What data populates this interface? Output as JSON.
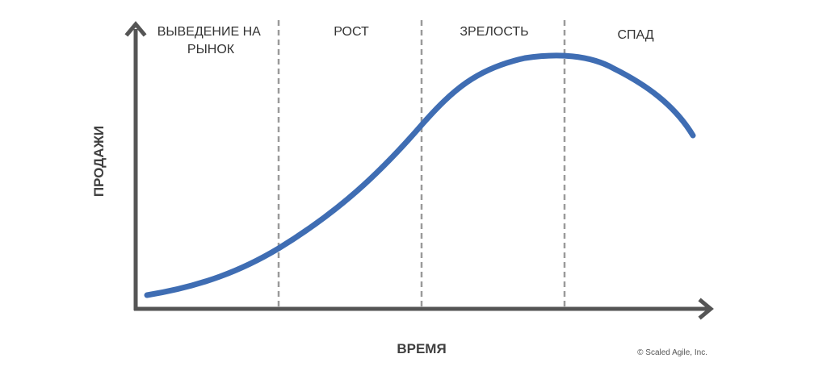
{
  "stages": [
    {
      "lines": [
        "ВЫВЕДЕНИЕ НА",
        "РЫНОК"
      ]
    },
    {
      "lines": [
        "РОСТ"
      ]
    },
    {
      "lines": [
        "ЗРЕЛОСТЬ"
      ]
    },
    {
      "lines": [
        "СПАД"
      ]
    }
  ],
  "y_axis_label": "ПРОДАЖИ",
  "x_axis_label": "ВРЕМЯ",
  "copyright": "© Scaled Agile, Inc."
}
